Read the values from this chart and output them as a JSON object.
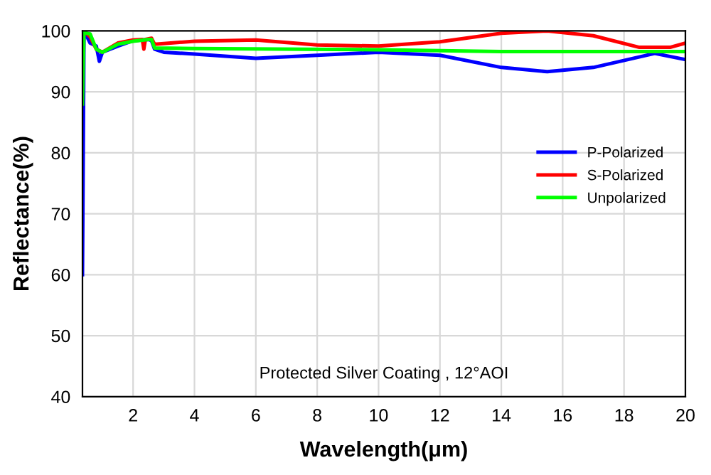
{
  "chart_data": {
    "type": "line",
    "xlabel": "Wavelength(μm)",
    "ylabel": "Reflectance(%)",
    "annotations": [
      "Protected Silver Coating , 12°AOI"
    ],
    "xlim": [
      0.35,
      20
    ],
    "xticks": [
      2,
      4,
      6,
      8,
      10,
      12,
      14,
      16,
      18,
      20
    ],
    "ylim": [
      40,
      100
    ],
    "yticks": [
      40,
      50,
      60,
      70,
      80,
      90,
      100
    ],
    "grid": true,
    "legend": "right",
    "line_style": "solid",
    "marker": "none",
    "series": [
      {
        "name": "P-Polarized",
        "color": "#0000ff",
        "x": [
          0.35,
          0.4,
          0.5,
          0.6,
          0.8,
          0.9,
          1.0,
          1.5,
          2.0,
          2.5,
          2.6,
          2.7,
          3,
          4,
          6,
          8,
          10,
          12,
          14,
          15.5,
          17,
          19,
          20
        ],
        "values": [
          60,
          100,
          99,
          98,
          97.5,
          95,
          96.5,
          97.5,
          98.4,
          98.6,
          98.4,
          97,
          96.5,
          96.2,
          95.5,
          96,
          96.5,
          96,
          94,
          93.3,
          94,
          96.3,
          95.3
        ]
      },
      {
        "name": "S-Polarized",
        "color": "#ff0000",
        "x": [
          0.4,
          0.5,
          0.6,
          0.8,
          1.0,
          1.5,
          2.0,
          2.3,
          2.35,
          2.4,
          2.6,
          2.7,
          4,
          6,
          8,
          10,
          12,
          14,
          15.5,
          17,
          18.5,
          19.5,
          20
        ],
        "values": [
          100,
          99.5,
          99,
          97,
          96.5,
          98,
          98.5,
          98.6,
          97,
          98.6,
          98.8,
          97.8,
          98.3,
          98.5,
          97.7,
          97.5,
          98.2,
          99.6,
          100,
          99.2,
          97.3,
          97.3,
          98
        ]
      },
      {
        "name": "Unpolarized",
        "color": "#00ff00",
        "x": [
          0.35,
          0.4,
          0.5,
          0.6,
          0.8,
          1.0,
          1.5,
          2.0,
          2.5,
          2.6,
          2.7,
          4,
          10,
          14,
          20
        ],
        "values": [
          88,
          100,
          99.6,
          99.5,
          97,
          96.5,
          97.8,
          98.3,
          98.6,
          98.6,
          97.2,
          97.1,
          96.9,
          96.6,
          96.6
        ]
      }
    ]
  }
}
